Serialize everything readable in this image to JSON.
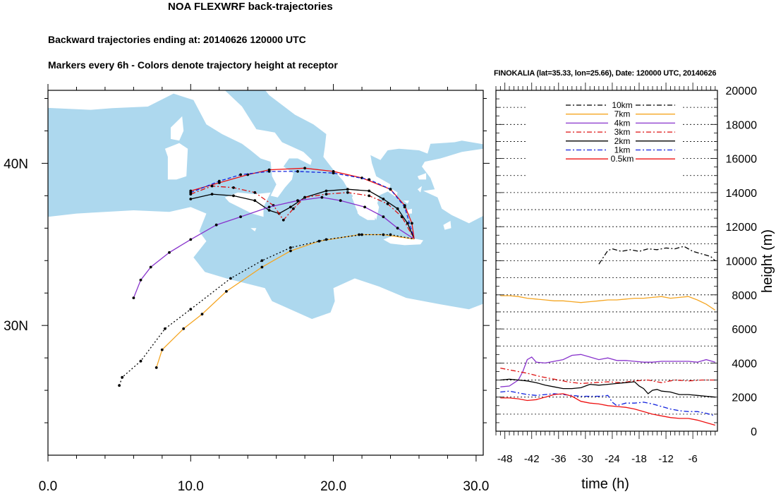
{
  "title": "NOA FLEXWRF back-trajectories",
  "subtitle_1": "Backward trajectories ending at: 20140626  120000 UTC",
  "subtitle_2": "Markers every 6h - Colors denote trajectory height at receptor",
  "chart_data": [
    {
      "type": "map-trajectories",
      "x_ticks": [
        "0.0",
        "10.0",
        "20.0",
        "30.0"
      ],
      "x_tick_values": [
        0,
        10,
        20,
        30
      ],
      "y_ticks": [
        "40N",
        "30N"
      ],
      "y_tick_values": [
        40,
        30
      ],
      "xlim": [
        0,
        30.5
      ],
      "ylim": [
        22,
        44.5
      ],
      "colors": {
        "land": "#ffffff",
        "sea": "#add8ee"
      },
      "series": [
        {
          "name": "0.5km",
          "color": "#ee1111",
          "dash": "solid",
          "points": [
            [
              10,
              38.3
            ],
            [
              12,
              38.8
            ],
            [
              14,
              39.3
            ],
            [
              15.5,
              39.6
            ],
            [
              18,
              39.7
            ],
            [
              20,
              39.5
            ],
            [
              22,
              39.1
            ],
            [
              24,
              38.4
            ],
            [
              25,
              37.4
            ],
            [
              25.5,
              36.3
            ],
            [
              25.66,
              35.33
            ]
          ]
        },
        {
          "name": "1km",
          "color": "#1122dd",
          "dash": "dashed",
          "points": [
            [
              10,
              38.2
            ],
            [
              12,
              38.9
            ],
            [
              13.5,
              39.3
            ],
            [
              15.5,
              39.5
            ],
            [
              17.5,
              39.5
            ],
            [
              20,
              39.4
            ],
            [
              22.5,
              39.0
            ],
            [
              24,
              38.4
            ],
            [
              25,
              37.3
            ],
            [
              25.66,
              35.33
            ]
          ]
        },
        {
          "name": "2km",
          "color": "#000000",
          "dash": "solid",
          "points": [
            [
              10,
              37.8
            ],
            [
              11.5,
              38.1
            ],
            [
              13,
              38.0
            ],
            [
              14.5,
              37.7
            ],
            [
              15.5,
              37.1
            ],
            [
              16.2,
              36.9
            ],
            [
              17,
              37.3
            ],
            [
              18,
              37.9
            ],
            [
              19.5,
              38.3
            ],
            [
              21,
              38.4
            ],
            [
              22.5,
              38.3
            ],
            [
              23.5,
              37.8
            ],
            [
              24.5,
              37.2
            ],
            [
              25.2,
              36.3
            ],
            [
              25.66,
              35.33
            ]
          ]
        },
        {
          "name": "3km",
          "color": "#dd1111",
          "dash": "dashdot",
          "points": [
            [
              10,
              38.1
            ],
            [
              11.5,
              38.6
            ],
            [
              13,
              38.5
            ],
            [
              14.5,
              38.2
            ],
            [
              15.8,
              37.4
            ],
            [
              16.5,
              36.5
            ],
            [
              17.2,
              37.2
            ],
            [
              18,
              37.9
            ],
            [
              19.5,
              38.1
            ],
            [
              21,
              38.2
            ],
            [
              22.5,
              38.0
            ],
            [
              23.8,
              37.5
            ],
            [
              24.8,
              36.7
            ],
            [
              25.66,
              35.33
            ]
          ]
        },
        {
          "name": "4km",
          "color": "#8833cc",
          "dash": "solid",
          "points": [
            [
              6,
              31.7
            ],
            [
              6.5,
              32.8
            ],
            [
              7.2,
              33.6
            ],
            [
              8.5,
              34.5
            ],
            [
              10,
              35.3
            ],
            [
              11.8,
              36.2
            ],
            [
              13.5,
              36.7
            ],
            [
              15.5,
              37.3
            ],
            [
              17.5,
              37.7
            ],
            [
              19.2,
              37.9
            ],
            [
              20.5,
              37.7
            ],
            [
              22.2,
              37.3
            ],
            [
              23.5,
              36.7
            ],
            [
              24.5,
              36.0
            ],
            [
              25.66,
              35.33
            ]
          ]
        },
        {
          "name": "7km",
          "color": "#f5a623",
          "dash": "solid",
          "points": [
            [
              7.6,
              27.4
            ],
            [
              8,
              28.5
            ],
            [
              9.5,
              29.8
            ],
            [
              10.8,
              30.7
            ],
            [
              12.5,
              32.1
            ],
            [
              15,
              33.6
            ],
            [
              17,
              34.6
            ],
            [
              19,
              35.2
            ],
            [
              21.8,
              35.6
            ],
            [
              23.5,
              35.6
            ],
            [
              25.66,
              35.33
            ]
          ]
        },
        {
          "name": "10km",
          "color": "#000000",
          "dash": "dotted",
          "points": [
            [
              5,
              26.3
            ],
            [
              5.2,
              26.8
            ],
            [
              6.5,
              27.8
            ],
            [
              8.2,
              29.8
            ],
            [
              10,
              31
            ],
            [
              12.8,
              32.9
            ],
            [
              15,
              34
            ],
            [
              17,
              34.8
            ],
            [
              19.5,
              35.3
            ],
            [
              22,
              35.6
            ],
            [
              24,
              35.6
            ],
            [
              25.66,
              35.33
            ]
          ]
        }
      ]
    },
    {
      "type": "line",
      "title": "FINOKALIA (lat=35.33,  lon=25.66), Date: 120000 UTC, 20140626",
      "xlabel": "time (h)",
      "ylabel": "height (m)",
      "xlim": [
        -50,
        -0.5
      ],
      "ylim": [
        0,
        20000
      ],
      "x_ticks": [
        "-48",
        "-42",
        "-36",
        "-30",
        "-24",
        "-18",
        "-12",
        "-6"
      ],
      "x_tick_values": [
        -48,
        -42,
        -36,
        -30,
        -24,
        -18,
        -12,
        -6
      ],
      "y_ticks": [
        "0",
        "2000",
        "4000",
        "6000",
        "8000",
        "10000",
        "12000",
        "14000",
        "16000",
        "18000",
        "20000"
      ],
      "y_tick_values": [
        0,
        2000,
        4000,
        6000,
        8000,
        10000,
        12000,
        14000,
        16000,
        18000,
        20000
      ],
      "grid": "horizontal dotted",
      "legend_position": "top-center",
      "series": [
        {
          "name": "10km",
          "color": "#000000",
          "dash": "dashdot",
          "x": [
            -27,
            -26,
            -25,
            -24,
            -22,
            -20,
            -18,
            -16,
            -14,
            -12,
            -10,
            -8,
            -6,
            -4,
            -2,
            -1
          ],
          "y": [
            9800,
            10200,
            10600,
            10700,
            10550,
            10650,
            10550,
            10700,
            10650,
            10750,
            10700,
            10850,
            10550,
            10400,
            10250,
            10000
          ]
        },
        {
          "name": "7km",
          "color": "#f5a623",
          "dash": "solid",
          "x": [
            -49,
            -47,
            -45,
            -43,
            -41,
            -39,
            -37,
            -35,
            -33,
            -31,
            -29,
            -27,
            -25,
            -23,
            -21,
            -19,
            -17,
            -15,
            -13,
            -11,
            -9,
            -7,
            -5,
            -3,
            -1
          ],
          "y": [
            7950,
            7950,
            7900,
            7800,
            7750,
            7700,
            7650,
            7650,
            7600,
            7550,
            7600,
            7650,
            7700,
            7700,
            7750,
            7800,
            7800,
            7850,
            7900,
            7800,
            7850,
            7900,
            7700,
            7450,
            7100
          ]
        },
        {
          "name": "4km",
          "color": "#8833cc",
          "dash": "solid",
          "x": [
            -49,
            -47,
            -45,
            -44,
            -43,
            -42,
            -41,
            -39,
            -37,
            -35,
            -33,
            -31,
            -29,
            -27,
            -25,
            -23,
            -21,
            -19,
            -17,
            -15,
            -13,
            -11,
            -9,
            -7,
            -5,
            -3,
            -1
          ],
          "y": [
            2600,
            2650,
            3000,
            3500,
            4200,
            4350,
            4050,
            4000,
            4100,
            4200,
            4450,
            4500,
            4350,
            4200,
            4300,
            4150,
            4150,
            4100,
            4050,
            4050,
            4100,
            4100,
            4100,
            4100,
            4050,
            4200,
            4050
          ]
        },
        {
          "name": "3km",
          "color": "#dd1111",
          "dash": "dashdot",
          "x": [
            -49,
            -46,
            -43,
            -40,
            -37,
            -34,
            -31,
            -28,
            -25,
            -22,
            -19,
            -16,
            -13,
            -10,
            -7,
            -4,
            -1
          ],
          "y": [
            3700,
            3550,
            3400,
            3200,
            3050,
            2900,
            2800,
            2850,
            2900,
            2850,
            2950,
            3000,
            2850,
            3000,
            2950,
            3000,
            3000
          ]
        },
        {
          "name": "2km",
          "color": "#000000",
          "dash": "solid",
          "x": [
            -49,
            -47,
            -45,
            -43,
            -41,
            -39,
            -37,
            -35,
            -33,
            -31,
            -29,
            -27,
            -25,
            -23,
            -21,
            -19,
            -18,
            -17,
            -16,
            -15,
            -14,
            -13,
            -11,
            -9,
            -7,
            -5,
            -3,
            -1
          ],
          "y": [
            3000,
            3050,
            3000,
            2950,
            2850,
            2700,
            2600,
            2500,
            2500,
            2550,
            2750,
            2700,
            2750,
            2800,
            2850,
            2900,
            2650,
            2500,
            2200,
            2400,
            2450,
            2350,
            2300,
            2150,
            2150,
            2100,
            2050,
            2000
          ]
        },
        {
          "name": "1km",
          "color": "#1122dd",
          "dash": "dashdot",
          "x": [
            -49,
            -47,
            -45,
            -43,
            -41,
            -39,
            -37,
            -35,
            -33,
            -31,
            -29,
            -27,
            -25,
            -24,
            -23,
            -21,
            -19,
            -17,
            -15,
            -13,
            -11,
            -9,
            -7,
            -5,
            -3,
            -1
          ],
          "y": [
            2300,
            2350,
            2250,
            2150,
            2100,
            2150,
            2200,
            2150,
            2100,
            2050,
            2050,
            2050,
            2100,
            1700,
            1500,
            1650,
            1650,
            1700,
            1600,
            1450,
            1300,
            1200,
            1150,
            1150,
            1050,
            900
          ]
        },
        {
          "name": "0.5km",
          "color": "#ee1111",
          "dash": "solid",
          "x": [
            -49,
            -47,
            -45,
            -43,
            -41,
            -39,
            -37,
            -35,
            -33,
            -31,
            -29,
            -27,
            -25,
            -23,
            -21,
            -19,
            -17,
            -15,
            -13,
            -11,
            -9,
            -7,
            -5,
            -3,
            -1
          ],
          "y": [
            1950,
            1950,
            1900,
            1800,
            1850,
            2000,
            2150,
            2200,
            2050,
            1750,
            1650,
            1600,
            1500,
            1450,
            1400,
            1300,
            1150,
            1000,
            900,
            800,
            750,
            750,
            650,
            500,
            350
          ]
        }
      ]
    }
  ]
}
